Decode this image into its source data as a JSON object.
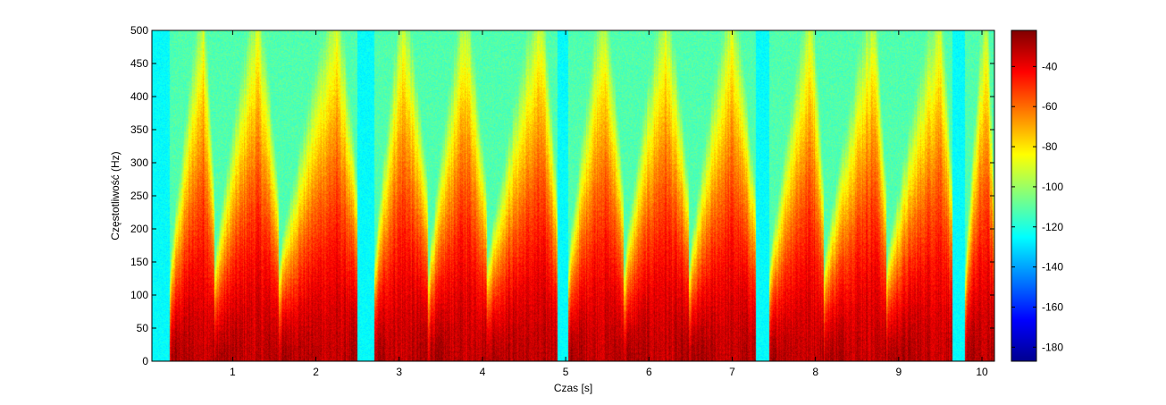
{
  "chart_data": {
    "type": "heatmap",
    "title": "",
    "xlabel": "Czas [s]",
    "ylabel": "Częstotliwość (Hz)",
    "xlim": [
      0.03,
      10.15
    ],
    "ylim": [
      0,
      500
    ],
    "x_ticks": [
      1,
      2,
      3,
      4,
      5,
      6,
      7,
      8,
      9,
      10
    ],
    "y_ticks": [
      0,
      50,
      100,
      150,
      200,
      250,
      300,
      350,
      400,
      450,
      500
    ],
    "colorbar": {
      "colormap": "jet",
      "range": [
        -187,
        -22
      ],
      "ticks": [
        -40,
        -60,
        -80,
        -100,
        -120,
        -140,
        -160,
        -180
      ]
    },
    "bursts": [
      {
        "start": 0.25,
        "end": 0.78,
        "peak": 0.65
      },
      {
        "start": 0.78,
        "end": 1.55,
        "peak": 1.3
      },
      {
        "start": 1.55,
        "end": 2.5,
        "peak": 2.25
      },
      {
        "start": 2.7,
        "end": 3.35,
        "peak": 3.05
      },
      {
        "start": 3.35,
        "end": 4.05,
        "peak": 3.8
      },
      {
        "start": 4.05,
        "end": 4.9,
        "peak": 4.7
      },
      {
        "start": 5.03,
        "end": 5.7,
        "peak": 5.45
      },
      {
        "start": 5.7,
        "end": 6.48,
        "peak": 6.2
      },
      {
        "start": 6.48,
        "end": 7.28,
        "peak": 7.0
      },
      {
        "start": 7.45,
        "end": 8.1,
        "peak": 7.95
      },
      {
        "start": 8.1,
        "end": 8.85,
        "peak": 8.7
      },
      {
        "start": 8.85,
        "end": 9.65,
        "peak": 9.5
      },
      {
        "start": 9.8,
        "end": 10.15,
        "peak": 10.05
      }
    ],
    "silence_level_db": -125
  }
}
